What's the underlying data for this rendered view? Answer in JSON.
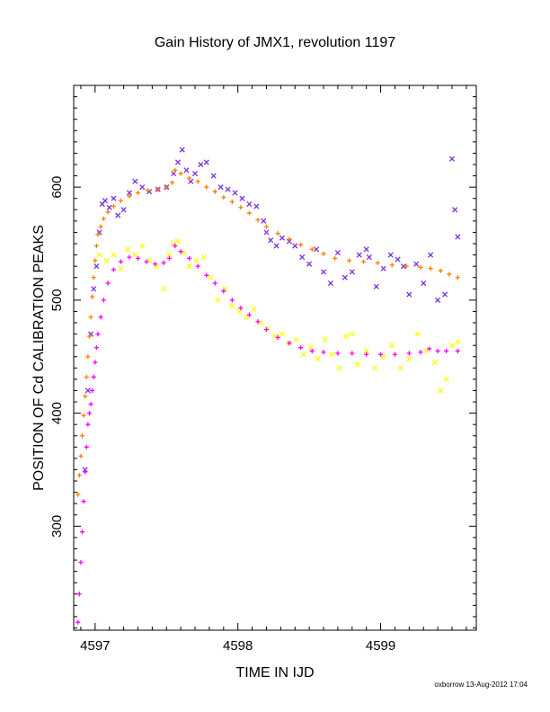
{
  "chart_data": {
    "type": "scatter",
    "title": "Gain History of JMX1, revolution 1197",
    "xlabel": "TIME IN IJD",
    "ylabel": "POSITION OF Cd CALIBRATION PEAKS",
    "xlim": [
      4596.85,
      4599.67
    ],
    "ylim": [
      208,
      690
    ],
    "x_ticks": [
      4597,
      4598,
      4599
    ],
    "x_tick_labels": [
      "4597",
      "4598",
      "4599"
    ],
    "y_ticks": [
      300,
      400,
      500,
      600
    ],
    "y_tick_labels": [
      "300",
      "400",
      "500",
      "600"
    ],
    "grid": false,
    "legend": "none",
    "series": [
      {
        "marker": "x",
        "color": "#7a2fe0",
        "points": [
          [
            4596.93,
            350
          ],
          [
            4596.95,
            420
          ],
          [
            4596.97,
            470
          ],
          [
            4596.99,
            510
          ],
          [
            4597.01,
            530
          ],
          [
            4597.03,
            560
          ],
          [
            4597.05,
            585
          ],
          [
            4597.07,
            588
          ],
          [
            4597.1,
            582
          ],
          [
            4597.13,
            590
          ],
          [
            4597.16,
            575
          ],
          [
            4597.2,
            580
          ],
          [
            4597.24,
            595
          ],
          [
            4597.28,
            605
          ],
          [
            4597.33,
            600
          ],
          [
            4597.38,
            596
          ],
          [
            4597.44,
            598
          ],
          [
            4597.5,
            600
          ],
          [
            4597.55,
            612
          ],
          [
            4597.58,
            622
          ],
          [
            4597.61,
            633
          ],
          [
            4597.64,
            615
          ],
          [
            4597.67,
            605
          ],
          [
            4597.7,
            612
          ],
          [
            4597.74,
            620
          ],
          [
            4597.78,
            622
          ],
          [
            4597.83,
            610
          ],
          [
            4597.88,
            600
          ],
          [
            4597.93,
            598
          ],
          [
            4597.98,
            595
          ],
          [
            4598.03,
            590
          ],
          [
            4598.08,
            585
          ],
          [
            4598.13,
            583
          ],
          [
            4598.18,
            570
          ],
          [
            4598.2,
            560
          ],
          [
            4598.23,
            553
          ],
          [
            4598.27,
            548
          ],
          [
            4598.31,
            555
          ],
          [
            4598.36,
            552
          ],
          [
            4598.4,
            548
          ],
          [
            4598.45,
            538
          ],
          [
            4598.5,
            532
          ],
          [
            4598.55,
            545
          ],
          [
            4598.6,
            525
          ],
          [
            4598.65,
            515
          ],
          [
            4598.7,
            542
          ],
          [
            4598.75,
            520
          ],
          [
            4598.8,
            525
          ],
          [
            4598.85,
            540
          ],
          [
            4598.9,
            545
          ],
          [
            4598.92,
            538
          ],
          [
            4598.97,
            512
          ],
          [
            4599.02,
            528
          ],
          [
            4599.07,
            540
          ],
          [
            4599.12,
            536
          ],
          [
            4599.16,
            530
          ],
          [
            4599.2,
            505
          ],
          [
            4599.25,
            532
          ],
          [
            4599.3,
            515
          ],
          [
            4599.35,
            540
          ],
          [
            4599.4,
            500
          ],
          [
            4599.45,
            505
          ],
          [
            4599.5,
            625
          ],
          [
            4599.52,
            580
          ],
          [
            4599.54,
            556
          ]
        ]
      },
      {
        "marker": "+",
        "color": "#ff7f00",
        "points": [
          [
            4596.88,
            328
          ],
          [
            4596.89,
            345
          ],
          [
            4596.9,
            362
          ],
          [
            4596.91,
            380
          ],
          [
            4596.92,
            398
          ],
          [
            4596.93,
            415
          ],
          [
            4596.94,
            432
          ],
          [
            4596.95,
            450
          ],
          [
            4596.96,
            468
          ],
          [
            4596.97,
            485
          ],
          [
            4596.98,
            503
          ],
          [
            4596.99,
            520
          ],
          [
            4597.0,
            535
          ],
          [
            4597.01,
            548
          ],
          [
            4597.02,
            558
          ],
          [
            4597.04,
            565
          ],
          [
            4597.06,
            572
          ],
          [
            4597.09,
            578
          ],
          [
            4597.13,
            583
          ],
          [
            4597.18,
            588
          ],
          [
            4597.24,
            592
          ],
          [
            4597.3,
            595
          ],
          [
            4597.37,
            597
          ],
          [
            4597.44,
            598
          ],
          [
            4597.5,
            600
          ],
          [
            4597.54,
            604
          ],
          [
            4597.56,
            615
          ],
          [
            4597.6,
            612
          ],
          [
            4597.66,
            608
          ],
          [
            4597.72,
            605
          ],
          [
            4597.78,
            600
          ],
          [
            4597.84,
            596
          ],
          [
            4597.9,
            591
          ],
          [
            4597.96,
            587
          ],
          [
            4598.02,
            582
          ],
          [
            4598.08,
            577
          ],
          [
            4598.14,
            571
          ],
          [
            4598.2,
            565
          ],
          [
            4598.28,
            559
          ],
          [
            4598.36,
            554
          ],
          [
            4598.44,
            549
          ],
          [
            4598.52,
            545
          ],
          [
            4598.6,
            541
          ],
          [
            4598.68,
            537
          ],
          [
            4598.78,
            535
          ],
          [
            4598.88,
            534
          ],
          [
            4598.98,
            533
          ],
          [
            4599.08,
            531
          ],
          [
            4599.18,
            530
          ],
          [
            4599.28,
            529
          ],
          [
            4599.35,
            528
          ],
          [
            4599.42,
            526
          ],
          [
            4599.48,
            523
          ],
          [
            4599.54,
            520
          ]
        ]
      },
      {
        "marker": "x",
        "color": "#ffff00",
        "points": [
          [
            4597.03,
            540
          ],
          [
            4597.08,
            535
          ],
          [
            4597.13,
            540
          ],
          [
            4597.18,
            528
          ],
          [
            4597.23,
            545
          ],
          [
            4597.28,
            540
          ],
          [
            4597.33,
            548
          ],
          [
            4597.38,
            535
          ],
          [
            4597.43,
            530
          ],
          [
            4597.48,
            510
          ],
          [
            4597.52,
            540
          ],
          [
            4597.55,
            550
          ],
          [
            4597.58,
            552
          ],
          [
            4597.62,
            542
          ],
          [
            4597.66,
            530
          ],
          [
            4597.71,
            535
          ],
          [
            4597.76,
            538
          ],
          [
            4597.81,
            520
          ],
          [
            4597.86,
            500
          ],
          [
            4597.91,
            510
          ],
          [
            4597.96,
            495
          ],
          [
            4598.01,
            490
          ],
          [
            4598.06,
            485
          ],
          [
            4598.11,
            492
          ],
          [
            4598.16,
            480
          ],
          [
            4598.21,
            475
          ],
          [
            4598.26,
            468
          ],
          [
            4598.31,
            470
          ],
          [
            4598.36,
            462
          ],
          [
            4598.41,
            465
          ],
          [
            4598.46,
            452
          ],
          [
            4598.51,
            458
          ],
          [
            4598.56,
            448
          ],
          [
            4598.61,
            465
          ],
          [
            4598.66,
            452
          ],
          [
            4598.71,
            440
          ],
          [
            4598.76,
            468
          ],
          [
            4598.8,
            470
          ],
          [
            4598.84,
            443
          ],
          [
            4598.9,
            455
          ],
          [
            4598.96,
            440
          ],
          [
            4599.02,
            450
          ],
          [
            4599.08,
            460
          ],
          [
            4599.14,
            440
          ],
          [
            4599.2,
            448
          ],
          [
            4599.26,
            470
          ],
          [
            4599.32,
            455
          ],
          [
            4599.38,
            445
          ],
          [
            4599.42,
            420
          ],
          [
            4599.46,
            430
          ],
          [
            4599.5,
            460
          ],
          [
            4599.54,
            463
          ]
        ]
      },
      {
        "marker": "+",
        "color": "#ff00ff",
        "points": [
          [
            4596.88,
            215
          ],
          [
            4596.89,
            240
          ],
          [
            4596.9,
            268
          ],
          [
            4596.91,
            295
          ],
          [
            4596.92,
            322
          ],
          [
            4596.93,
            348
          ],
          [
            4596.94,
            370
          ],
          [
            4596.95,
            390
          ],
          [
            4596.96,
            400
          ],
          [
            4596.97,
            408
          ],
          [
            4596.98,
            420
          ],
          [
            4596.99,
            432
          ],
          [
            4597.0,
            445
          ],
          [
            4597.01,
            458
          ],
          [
            4597.02,
            470
          ],
          [
            4597.04,
            485
          ],
          [
            4597.06,
            500
          ],
          [
            4597.09,
            515
          ],
          [
            4597.13,
            527
          ],
          [
            4597.18,
            534
          ],
          [
            4597.24,
            538
          ],
          [
            4597.3,
            537
          ],
          [
            4597.36,
            534
          ],
          [
            4597.42,
            532
          ],
          [
            4597.48,
            533
          ],
          [
            4597.52,
            537
          ],
          [
            4597.56,
            548
          ],
          [
            4597.6,
            543
          ],
          [
            4597.66,
            537
          ],
          [
            4597.72,
            530
          ],
          [
            4597.78,
            522
          ],
          [
            4597.84,
            515
          ],
          [
            4597.9,
            508
          ],
          [
            4597.96,
            500
          ],
          [
            4598.02,
            493
          ],
          [
            4598.08,
            487
          ],
          [
            4598.14,
            481
          ],
          [
            4598.2,
            474
          ],
          [
            4598.28,
            467
          ],
          [
            4598.36,
            462
          ],
          [
            4598.44,
            458
          ],
          [
            4598.52,
            455
          ],
          [
            4598.6,
            454
          ],
          [
            4598.7,
            453
          ],
          [
            4598.8,
            453
          ],
          [
            4598.9,
            452
          ],
          [
            4599.0,
            452
          ],
          [
            4599.1,
            452
          ],
          [
            4599.2,
            453
          ],
          [
            4599.28,
            454
          ],
          [
            4599.34,
            457
          ],
          [
            4599.4,
            455
          ],
          [
            4599.46,
            455
          ],
          [
            4599.54,
            455
          ]
        ]
      }
    ]
  },
  "footer": {
    "credit": "oxborrow 13-Aug-2012 17:04"
  }
}
